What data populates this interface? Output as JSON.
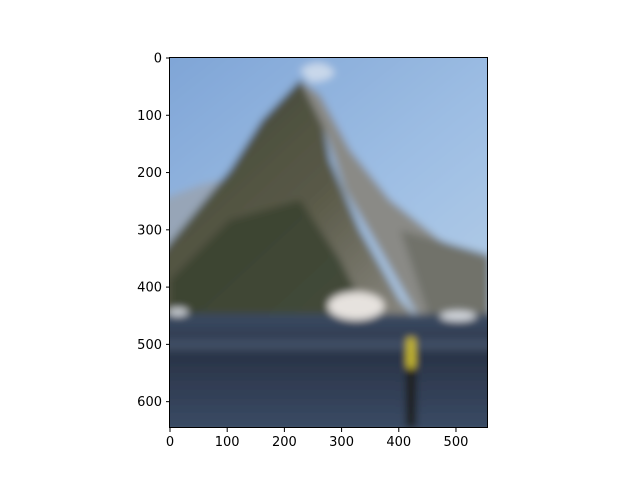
{
  "chart_data": {
    "type": "image",
    "title": "",
    "xlabel": "",
    "ylabel": "",
    "image_width": 556,
    "image_height": 646,
    "xlim": [
      0,
      556
    ],
    "ylim": [
      646,
      0
    ],
    "xticks": [
      0,
      100,
      200,
      300,
      400,
      500
    ],
    "yticks": [
      0,
      100,
      200,
      300,
      400,
      500,
      600
    ],
    "xtick_labels": [
      "0",
      "100",
      "200",
      "300",
      "400",
      "500"
    ],
    "ytick_labels": [
      "0",
      "100",
      "200",
      "300",
      "400",
      "500",
      "600"
    ],
    "grid": false,
    "image_subject": "mountain-peak-over-fjord-with-boats",
    "colors": {
      "sky": "#8fb0d8",
      "mountain_dark": "#4a4e3a",
      "mountain_light": "#8e8a82",
      "water": "#2c3a50",
      "boat": "#e8e4e0",
      "post": "#d8c020"
    }
  }
}
